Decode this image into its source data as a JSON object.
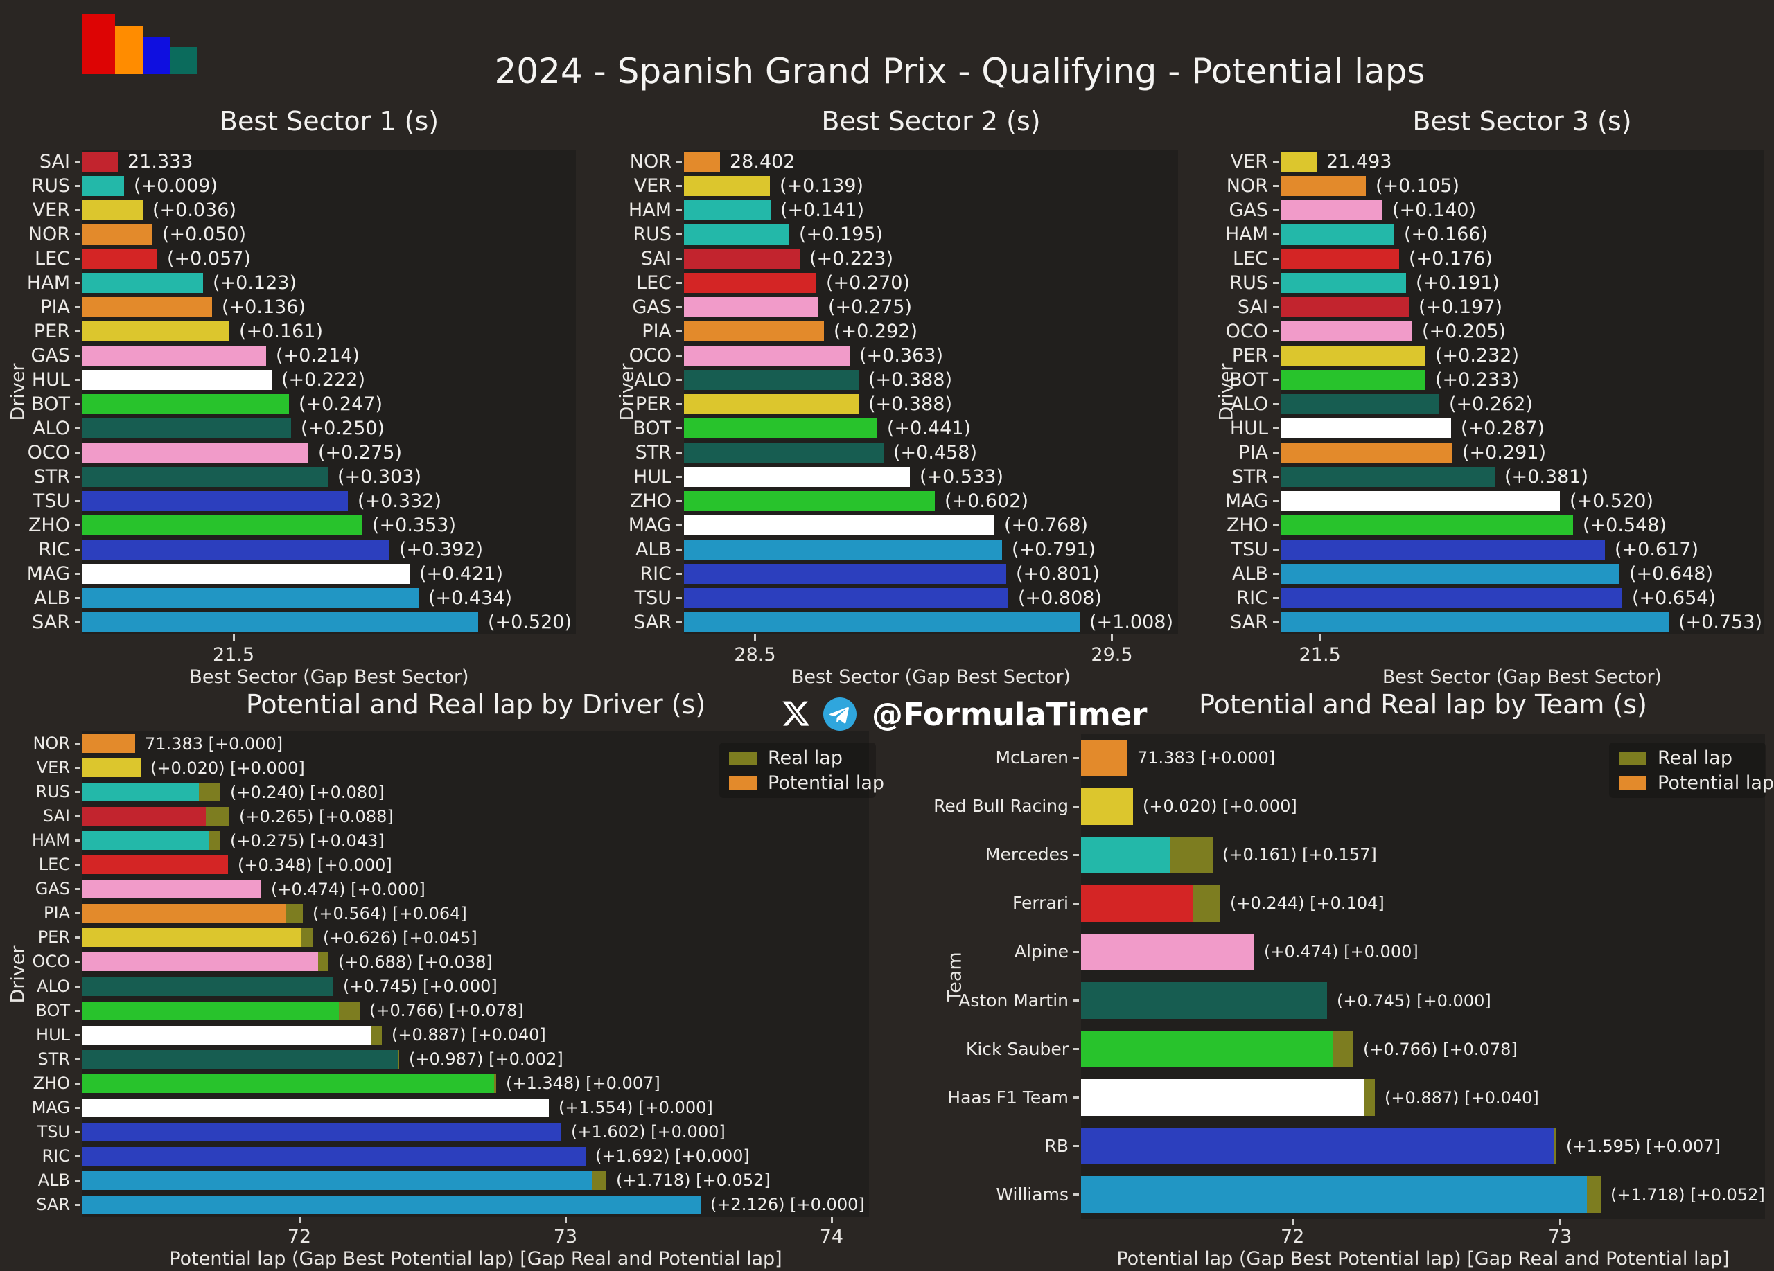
{
  "header": {
    "title": "2024 - Spanish Grand Prix - Qualifying - Potential laps",
    "handle": "@FormulaTimer",
    "logo_colors": [
      "#dd0404",
      "#ff8c00",
      "#0f0fe0",
      "#0b6b5c"
    ]
  },
  "palette": {
    "figure_bg": "#2a2623",
    "plot_bg": "#211f1d",
    "text": "#eceae7",
    "real_lap": "#7d7d20",
    "potential_lap_legend": "#e38a2b",
    "telegram_blue": "#2fa6dd",
    "series": {
      "SAI": "#c2242e",
      "LEC": "#d42525",
      "RUS": "#23b8a9",
      "HAM": "#23b8a9",
      "VER": "#dcc62d",
      "PER": "#dcc62d",
      "NOR": "#e38a2b",
      "PIA": "#e38a2b",
      "GAS": "#f19bc9",
      "OCO": "#f19bc9",
      "HUL": "#ffffff",
      "MAG": "#ffffff",
      "BOT": "#28c32c",
      "ZHO": "#28c32c",
      "ALO": "#175d51",
      "STR": "#175d51",
      "TSU": "#2c3fbe",
      "RIC": "#2c3fbe",
      "ALB": "#2196c4",
      "SAR": "#2196c4",
      "McLaren": "#e38a2b",
      "Red Bull Racing": "#dcc62d",
      "Mercedes": "#23b8a9",
      "Ferrari": "#d42525",
      "Alpine": "#f19bc9",
      "Aston Martin": "#175d51",
      "Kick Sauber": "#28c32c",
      "Haas F1 Team": "#ffffff",
      "RB": "#2c3fbe",
      "Williams": "#2196c4"
    }
  },
  "chart_data": [
    {
      "type": "bar",
      "title": "Best Sector 1 (s)",
      "xlabel": "Best Sector (Gap Best Sector)",
      "ylabel": "Driver",
      "base_time": 21.333,
      "xticks": [
        {
          "v": 21.5,
          "label": "21.5"
        }
      ],
      "rows": [
        {
          "name": "SAI",
          "gap": 0.0,
          "label": "21.333"
        },
        {
          "name": "RUS",
          "gap": 0.009,
          "label": "(+0.009)"
        },
        {
          "name": "VER",
          "gap": 0.036,
          "label": "(+0.036)"
        },
        {
          "name": "NOR",
          "gap": 0.05,
          "label": "(+0.050)"
        },
        {
          "name": "LEC",
          "gap": 0.057,
          "label": "(+0.057)"
        },
        {
          "name": "HAM",
          "gap": 0.123,
          "label": "(+0.123)"
        },
        {
          "name": "PIA",
          "gap": 0.136,
          "label": "(+0.136)"
        },
        {
          "name": "PER",
          "gap": 0.161,
          "label": "(+0.161)"
        },
        {
          "name": "GAS",
          "gap": 0.214,
          "label": "(+0.214)"
        },
        {
          "name": "HUL",
          "gap": 0.222,
          "label": "(+0.222)"
        },
        {
          "name": "BOT",
          "gap": 0.247,
          "label": "(+0.247)"
        },
        {
          "name": "ALO",
          "gap": 0.25,
          "label": "(+0.250)"
        },
        {
          "name": "OCO",
          "gap": 0.275,
          "label": "(+0.275)"
        },
        {
          "name": "STR",
          "gap": 0.303,
          "label": "(+0.303)"
        },
        {
          "name": "TSU",
          "gap": 0.332,
          "label": "(+0.332)"
        },
        {
          "name": "ZHO",
          "gap": 0.353,
          "label": "(+0.353)"
        },
        {
          "name": "RIC",
          "gap": 0.392,
          "label": "(+0.392)"
        },
        {
          "name": "MAG",
          "gap": 0.421,
          "label": "(+0.421)"
        },
        {
          "name": "ALB",
          "gap": 0.434,
          "label": "(+0.434)"
        },
        {
          "name": "SAR",
          "gap": 0.52,
          "label": "(+0.520)"
        }
      ]
    },
    {
      "type": "bar",
      "title": "Best Sector 2 (s)",
      "xlabel": "Best Sector (Gap Best Sector)",
      "ylabel": "Driver",
      "base_time": 28.402,
      "xticks": [
        {
          "v": 28.5,
          "label": "28.5"
        },
        {
          "v": 29.5,
          "label": "29.5"
        }
      ],
      "rows": [
        {
          "name": "NOR",
          "gap": 0.0,
          "label": "28.402"
        },
        {
          "name": "VER",
          "gap": 0.139,
          "label": "(+0.139)"
        },
        {
          "name": "HAM",
          "gap": 0.141,
          "label": "(+0.141)"
        },
        {
          "name": "RUS",
          "gap": 0.195,
          "label": "(+0.195)"
        },
        {
          "name": "SAI",
          "gap": 0.223,
          "label": "(+0.223)"
        },
        {
          "name": "LEC",
          "gap": 0.27,
          "label": "(+0.270)"
        },
        {
          "name": "GAS",
          "gap": 0.275,
          "label": "(+0.275)"
        },
        {
          "name": "PIA",
          "gap": 0.292,
          "label": "(+0.292)"
        },
        {
          "name": "OCO",
          "gap": 0.363,
          "label": "(+0.363)"
        },
        {
          "name": "ALO",
          "gap": 0.388,
          "label": "(+0.388)"
        },
        {
          "name": "PER",
          "gap": 0.388,
          "label": "(+0.388)"
        },
        {
          "name": "BOT",
          "gap": 0.441,
          "label": "(+0.441)"
        },
        {
          "name": "STR",
          "gap": 0.458,
          "label": "(+0.458)"
        },
        {
          "name": "HUL",
          "gap": 0.533,
          "label": "(+0.533)"
        },
        {
          "name": "ZHO",
          "gap": 0.602,
          "label": "(+0.602)"
        },
        {
          "name": "MAG",
          "gap": 0.768,
          "label": "(+0.768)"
        },
        {
          "name": "ALB",
          "gap": 0.791,
          "label": "(+0.791)"
        },
        {
          "name": "RIC",
          "gap": 0.801,
          "label": "(+0.801)"
        },
        {
          "name": "TSU",
          "gap": 0.808,
          "label": "(+0.808)"
        },
        {
          "name": "SAR",
          "gap": 1.008,
          "label": "(+1.008)"
        }
      ]
    },
    {
      "type": "bar",
      "title": "Best Sector 3 (s)",
      "xlabel": "Best Sector (Gap Best Sector)",
      "ylabel": "Driver",
      "base_time": 21.493,
      "xticks": [
        {
          "v": 21.5,
          "label": "21.5"
        }
      ],
      "rows": [
        {
          "name": "VER",
          "gap": 0.0,
          "label": "21.493"
        },
        {
          "name": "NOR",
          "gap": 0.105,
          "label": "(+0.105)"
        },
        {
          "name": "GAS",
          "gap": 0.14,
          "label": "(+0.140)"
        },
        {
          "name": "HAM",
          "gap": 0.166,
          "label": "(+0.166)"
        },
        {
          "name": "LEC",
          "gap": 0.176,
          "label": "(+0.176)"
        },
        {
          "name": "RUS",
          "gap": 0.191,
          "label": "(+0.191)"
        },
        {
          "name": "SAI",
          "gap": 0.197,
          "label": "(+0.197)"
        },
        {
          "name": "OCO",
          "gap": 0.205,
          "label": "(+0.205)"
        },
        {
          "name": "PER",
          "gap": 0.232,
          "label": "(+0.232)"
        },
        {
          "name": "BOT",
          "gap": 0.233,
          "label": "(+0.233)"
        },
        {
          "name": "ALO",
          "gap": 0.262,
          "label": "(+0.262)"
        },
        {
          "name": "HUL",
          "gap": 0.287,
          "label": "(+0.287)"
        },
        {
          "name": "PIA",
          "gap": 0.291,
          "label": "(+0.291)"
        },
        {
          "name": "STR",
          "gap": 0.381,
          "label": "(+0.381)"
        },
        {
          "name": "MAG",
          "gap": 0.52,
          "label": "(+0.520)"
        },
        {
          "name": "ZHO",
          "gap": 0.548,
          "label": "(+0.548)"
        },
        {
          "name": "TSU",
          "gap": 0.617,
          "label": "(+0.617)"
        },
        {
          "name": "ALB",
          "gap": 0.648,
          "label": "(+0.648)"
        },
        {
          "name": "RIC",
          "gap": 0.654,
          "label": "(+0.654)"
        },
        {
          "name": "SAR",
          "gap": 0.753,
          "label": "(+0.753)"
        }
      ]
    },
    {
      "type": "bar",
      "title": "Potential and Real lap by Driver (s)",
      "xlabel": "Potential lap (Gap Best Potential lap) [Gap Real and Potential lap]",
      "ylabel": "Driver",
      "legend": [
        "Real lap",
        "Potential lap"
      ],
      "base_time": 71.383,
      "xticks": [
        {
          "v": 72,
          "label": "72"
        },
        {
          "v": 73,
          "label": "73"
        },
        {
          "v": 74,
          "label": "74"
        }
      ],
      "rows": [
        {
          "name": "NOR",
          "gap": 0.0,
          "real": 0.0,
          "label": "71.383 [+0.000]"
        },
        {
          "name": "VER",
          "gap": 0.02,
          "real": 0.0,
          "label": "(+0.020) [+0.000]"
        },
        {
          "name": "RUS",
          "gap": 0.24,
          "real": 0.08,
          "label": "(+0.240) [+0.080]"
        },
        {
          "name": "SAI",
          "gap": 0.265,
          "real": 0.088,
          "label": "(+0.265) [+0.088]"
        },
        {
          "name": "HAM",
          "gap": 0.275,
          "real": 0.043,
          "label": "(+0.275) [+0.043]"
        },
        {
          "name": "LEC",
          "gap": 0.348,
          "real": 0.0,
          "label": "(+0.348) [+0.000]"
        },
        {
          "name": "GAS",
          "gap": 0.474,
          "real": 0.0,
          "label": "(+0.474) [+0.000]"
        },
        {
          "name": "PIA",
          "gap": 0.564,
          "real": 0.064,
          "label": "(+0.564) [+0.064]"
        },
        {
          "name": "PER",
          "gap": 0.626,
          "real": 0.045,
          "label": "(+0.626) [+0.045]"
        },
        {
          "name": "OCO",
          "gap": 0.688,
          "real": 0.038,
          "label": "(+0.688) [+0.038]"
        },
        {
          "name": "ALO",
          "gap": 0.745,
          "real": 0.0,
          "label": "(+0.745) [+0.000]"
        },
        {
          "name": "BOT",
          "gap": 0.766,
          "real": 0.078,
          "label": "(+0.766) [+0.078]"
        },
        {
          "name": "HUL",
          "gap": 0.887,
          "real": 0.04,
          "label": "(+0.887) [+0.040]"
        },
        {
          "name": "STR",
          "gap": 0.987,
          "real": 0.002,
          "label": "(+0.987) [+0.002]"
        },
        {
          "name": "ZHO",
          "gap": 1.348,
          "real": 0.007,
          "label": "(+1.348) [+0.007]"
        },
        {
          "name": "MAG",
          "gap": 1.554,
          "real": 0.0,
          "label": "(+1.554) [+0.000]"
        },
        {
          "name": "TSU",
          "gap": 1.602,
          "real": 0.0,
          "label": "(+1.602) [+0.000]"
        },
        {
          "name": "RIC",
          "gap": 1.692,
          "real": 0.0,
          "label": "(+1.692) [+0.000]"
        },
        {
          "name": "ALB",
          "gap": 1.718,
          "real": 0.052,
          "label": "(+1.718) [+0.052]"
        },
        {
          "name": "SAR",
          "gap": 2.126,
          "real": 0.0,
          "label": "(+2.126) [+0.000]"
        }
      ]
    },
    {
      "type": "bar",
      "title": "Potential and Real lap by Team (s)",
      "xlabel": "Potential lap (Gap Best Potential lap) [Gap Real and Potential lap]",
      "ylabel": "Team",
      "legend": [
        "Real lap",
        "Potential lap"
      ],
      "base_time": 71.383,
      "xticks": [
        {
          "v": 72,
          "label": "72"
        },
        {
          "v": 73,
          "label": "73"
        }
      ],
      "rows": [
        {
          "name": "McLaren",
          "gap": 0.0,
          "real": 0.0,
          "label": "71.383 [+0.000]"
        },
        {
          "name": "Red Bull Racing",
          "gap": 0.02,
          "real": 0.0,
          "label": "(+0.020) [+0.000]"
        },
        {
          "name": "Mercedes",
          "gap": 0.161,
          "real": 0.157,
          "label": "(+0.161) [+0.157]"
        },
        {
          "name": "Ferrari",
          "gap": 0.244,
          "real": 0.104,
          "label": "(+0.244) [+0.104]"
        },
        {
          "name": "Alpine",
          "gap": 0.474,
          "real": 0.0,
          "label": "(+0.474) [+0.000]"
        },
        {
          "name": "Aston Martin",
          "gap": 0.745,
          "real": 0.0,
          "label": "(+0.745) [+0.000]"
        },
        {
          "name": "Kick Sauber",
          "gap": 0.766,
          "real": 0.078,
          "label": "(+0.766) [+0.078]"
        },
        {
          "name": "Haas F1 Team",
          "gap": 0.887,
          "real": 0.04,
          "label": "(+0.887) [+0.040]"
        },
        {
          "name": "RB",
          "gap": 1.595,
          "real": 0.007,
          "label": "(+1.595) [+0.007]"
        },
        {
          "name": "Williams",
          "gap": 1.718,
          "real": 0.052,
          "label": "(+1.718) [+0.052]"
        }
      ]
    }
  ]
}
